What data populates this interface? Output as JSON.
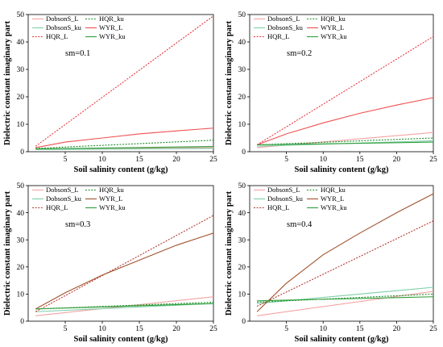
{
  "chart_data": [
    {
      "type": "line",
      "annotation": "sm=0.1",
      "xlabel": "Soil salinity content (g/kg)",
      "ylabel": "Dielectric constant imaginary part",
      "xlim": [
        0,
        25
      ],
      "ylim": [
        0,
        50
      ],
      "xticks": [
        "5",
        "10",
        "15",
        "20",
        "25"
      ],
      "yticks": [
        "0",
        "10",
        "20",
        "30",
        "40",
        "50"
      ],
      "legend": [
        "DobsonS_L",
        "HQR_ku",
        "DobsonS_ku",
        "WYR_L",
        "HQR_L",
        "WYR_ku"
      ],
      "series": [
        {
          "name": "DobsonS_L",
          "color": "#f4a3a3",
          "dash": "solid",
          "x": [
            1,
            25
          ],
          "y": [
            1.0,
            1.5
          ]
        },
        {
          "name": "DobsonS_ku",
          "color": "#7fcfa8",
          "dash": "solid",
          "x": [
            1,
            25
          ],
          "y": [
            0.8,
            1.2
          ]
        },
        {
          "name": "HQR_L",
          "color": "#e8383d",
          "dash": "dotted",
          "x": [
            1,
            25
          ],
          "y": [
            2.0,
            49.5
          ]
        },
        {
          "name": "HQR_ku",
          "color": "#1e8c2a",
          "dash": "dotted",
          "x": [
            1,
            25
          ],
          "y": [
            1.2,
            4.2
          ]
        },
        {
          "name": "WYR_L",
          "color": "#f05050",
          "dash": "solid",
          "x": [
            1,
            5,
            10,
            15,
            20,
            25
          ],
          "y": [
            1.5,
            3.5,
            5.0,
            6.5,
            7.6,
            8.6
          ]
        },
        {
          "name": "WYR_ku",
          "color": "#2e9e3a",
          "dash": "solid",
          "x": [
            1,
            25
          ],
          "y": [
            1.0,
            1.9
          ]
        }
      ]
    },
    {
      "type": "line",
      "annotation": "sm=0.2",
      "xlabel": "Soil salinity content (g/kg)",
      "ylabel": "Dielectric constant imaginary part",
      "xlim": [
        0,
        25
      ],
      "ylim": [
        0,
        50
      ],
      "xticks": [
        "5",
        "10",
        "15",
        "20",
        "25"
      ],
      "yticks": [
        "0",
        "10",
        "20",
        "30",
        "40",
        "50"
      ],
      "legend": [
        "DobsonS_L",
        "HQR_ku",
        "DobsonS_ku",
        "WYR_L",
        "HQR_L",
        "WYR_ku"
      ],
      "series": [
        {
          "name": "DobsonS_L",
          "color": "#f4a3a3",
          "dash": "solid",
          "x": [
            1,
            25
          ],
          "y": [
            1.5,
            7.0
          ]
        },
        {
          "name": "DobsonS_ku",
          "color": "#7fcfa8",
          "dash": "solid",
          "x": [
            1,
            25
          ],
          "y": [
            2.0,
            4.0
          ]
        },
        {
          "name": "HQR_L",
          "color": "#e8383d",
          "dash": "dotted",
          "x": [
            1,
            25
          ],
          "y": [
            2.5,
            42.0
          ]
        },
        {
          "name": "HQR_ku",
          "color": "#1e8c2a",
          "dash": "dotted",
          "x": [
            1,
            25
          ],
          "y": [
            2.5,
            5.0
          ]
        },
        {
          "name": "WYR_L",
          "color": "#f05050",
          "dash": "solid",
          "x": [
            1,
            5,
            10,
            15,
            20,
            25
          ],
          "y": [
            2.5,
            6.5,
            10.5,
            14.0,
            17.0,
            19.7
          ]
        },
        {
          "name": "WYR_ku",
          "color": "#2e9e3a",
          "dash": "solid",
          "x": [
            1,
            25
          ],
          "y": [
            2.5,
            3.5
          ]
        }
      ]
    },
    {
      "type": "line",
      "annotation": "sm=0.3",
      "xlabel": "Soil salinity content (g/kg)",
      "ylabel": "Dielectric constant imaginary part",
      "xlim": [
        0,
        25
      ],
      "ylim": [
        0,
        50
      ],
      "xticks": [
        "5",
        "10",
        "15",
        "20",
        "25"
      ],
      "yticks": [
        "0",
        "10",
        "20",
        "30",
        "40",
        "50"
      ],
      "legend": [
        "DobsonS_L",
        "HQR_ku",
        "DobsonS_ku",
        "WYR_L",
        "HQR_L",
        "WYR_ku"
      ],
      "series": [
        {
          "name": "DobsonS_L",
          "color": "#f4a3a3",
          "dash": "solid",
          "x": [
            1,
            25
          ],
          "y": [
            2.0,
            9.0
          ]
        },
        {
          "name": "DobsonS_ku",
          "color": "#7fcfa8",
          "dash": "solid",
          "x": [
            1,
            25
          ],
          "y": [
            3.5,
            6.5
          ]
        },
        {
          "name": "HQR_L",
          "color": "#b5382e",
          "dash": "dotted",
          "x": [
            1,
            25
          ],
          "y": [
            3.5,
            39.0
          ]
        },
        {
          "name": "HQR_ku",
          "color": "#1e8c2a",
          "dash": "dotted",
          "x": [
            1,
            25
          ],
          "y": [
            4.5,
            7.0
          ]
        },
        {
          "name": "WYR_L",
          "color": "#a0522d",
          "dash": "solid",
          "x": [
            1,
            5,
            10,
            15,
            20,
            25
          ],
          "y": [
            4.5,
            10.5,
            17.0,
            22.5,
            28.0,
            32.5
          ]
        },
        {
          "name": "WYR_ku",
          "color": "#2e9e3a",
          "dash": "solid",
          "x": [
            1,
            25
          ],
          "y": [
            4.5,
            6.5
          ]
        }
      ]
    },
    {
      "type": "line",
      "annotation": "sm=0.4",
      "xlabel": "Soil salinity content (g/kg)",
      "ylabel": "Dielectric constant imaginary part",
      "xlim": [
        0,
        25
      ],
      "ylim": [
        0,
        50
      ],
      "xticks": [
        "5",
        "10",
        "15",
        "20",
        "25"
      ],
      "yticks": [
        "0",
        "10",
        "20",
        "30",
        "40",
        "50"
      ],
      "legend": [
        "DobsonS_L",
        "HQR_ku",
        "DobsonS_ku",
        "WYR_L",
        "HQR_L",
        "WYR_ku"
      ],
      "series": [
        {
          "name": "DobsonS_L",
          "color": "#f4a3a3",
          "dash": "solid",
          "x": [
            1,
            25
          ],
          "y": [
            2.0,
            11.0
          ]
        },
        {
          "name": "DobsonS_ku",
          "color": "#7fcfa8",
          "dash": "solid",
          "x": [
            1,
            25
          ],
          "y": [
            6.5,
            12.5
          ]
        },
        {
          "name": "HQR_L",
          "color": "#b5382e",
          "dash": "dotted",
          "x": [
            1,
            25
          ],
          "y": [
            5.5,
            37.0
          ]
        },
        {
          "name": "HQR_ku",
          "color": "#1e8c2a",
          "dash": "dotted",
          "x": [
            1,
            25
          ],
          "y": [
            7.0,
            10.0
          ]
        },
        {
          "name": "WYR_L",
          "color": "#a0522d",
          "dash": "solid",
          "x": [
            1,
            5,
            10,
            15,
            20,
            25
          ],
          "y": [
            3.5,
            14.0,
            24.5,
            32.5,
            40.0,
            47.0
          ]
        },
        {
          "name": "WYR_ku",
          "color": "#2e9e3a",
          "dash": "solid",
          "x": [
            1,
            25
          ],
          "y": [
            7.5,
            9.0
          ]
        }
      ]
    }
  ]
}
